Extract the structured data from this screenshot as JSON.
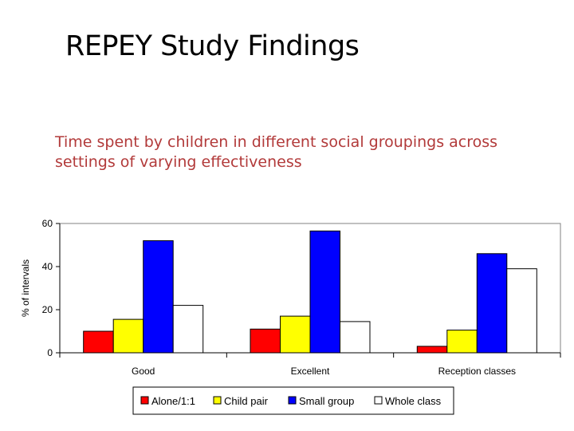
{
  "slide": {
    "title": "REPEY Study Findings",
    "subtitle": "Time spent by children in different social groupings across settings of varying effectiveness"
  },
  "colors": {
    "alone": "#ff0000",
    "child_pair": "#ffff00",
    "small_group": "#0000ff",
    "whole_class": "#ffffff"
  },
  "chart_data": {
    "type": "bar",
    "title": "",
    "xlabel": "",
    "ylabel": "% of intervals",
    "ylim": [
      0,
      60
    ],
    "yticks": [
      0,
      20,
      40,
      60
    ],
    "grid": false,
    "legend_position": "bottom",
    "categories": [
      "Good",
      "Excellent",
      "Reception classes"
    ],
    "series": [
      {
        "name": "Alone/1:1",
        "color": "#ff0000",
        "values": [
          10,
          11,
          3
        ]
      },
      {
        "name": "Child pair",
        "color": "#ffff00",
        "values": [
          15.5,
          17,
          10.5
        ]
      },
      {
        "name": "Small group",
        "color": "#0000ff",
        "values": [
          52,
          56.5,
          46
        ]
      },
      {
        "name": "Whole class",
        "color": "#ffffff",
        "values": [
          22,
          14.5,
          39
        ]
      }
    ]
  }
}
